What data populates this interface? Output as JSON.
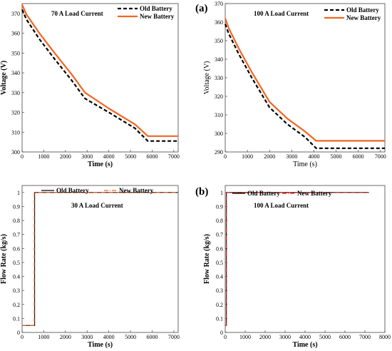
{
  "panel_letters": {
    "a": "(a)",
    "b": "(b)"
  },
  "chart_data": [
    {
      "id": "tl",
      "type": "line",
      "annotation": "70 A Load Current",
      "xlabel": "Time (s)",
      "ylabel": "Voltage (V)",
      "xlim": [
        0,
        7200
      ],
      "ylim": [
        300,
        375
      ],
      "xticks": [
        0,
        1000,
        2000,
        3000,
        4000,
        5000,
        6000,
        7000
      ],
      "yticks": [
        300,
        310,
        320,
        330,
        340,
        350,
        360,
        370
      ],
      "legend_position": "top-right",
      "series": [
        {
          "name": "Old Battery",
          "color": "#000000",
          "style": "dashed",
          "x": [
            0,
            200,
            800,
            1500,
            2300,
            2900,
            4000,
            5200,
            5800,
            7200
          ],
          "y": [
            372,
            367,
            357,
            347,
            336,
            327,
            320,
            312,
            305.5,
            305.5
          ]
        },
        {
          "name": "New Battery",
          "color": "#f26522",
          "style": "solid",
          "x": [
            0,
            200,
            800,
            1500,
            2300,
            2900,
            4000,
            5200,
            5800,
            7200
          ],
          "y": [
            374.5,
            369.5,
            360,
            350,
            339,
            330,
            322,
            314,
            308,
            308
          ]
        }
      ]
    },
    {
      "id": "tr",
      "type": "line",
      "annotation": "100 A Load Current",
      "xlabel": "Time (s)",
      "ylabel": "Voltage (V)",
      "xlim": [
        0,
        7200
      ],
      "ylim": [
        290,
        370
      ],
      "xticks": [
        0,
        1000,
        2000,
        3000,
        4000,
        5000,
        6000,
        7000
      ],
      "yticks": [
        290,
        300,
        310,
        320,
        330,
        340,
        350,
        360,
        370
      ],
      "legend_position": "top-right",
      "series": [
        {
          "name": "Old Battery",
          "color": "#000000",
          "style": "dashed",
          "x": [
            0,
            150,
            600,
            1200,
            2000,
            2800,
            3600,
            4100,
            7200
          ],
          "y": [
            359,
            354,
            343,
            330,
            314,
            305,
            298,
            292,
            292
          ]
        },
        {
          "name": "New Battery",
          "color": "#f26522",
          "style": "solid",
          "x": [
            0,
            150,
            600,
            1200,
            2000,
            2800,
            3600,
            4100,
            7200
          ],
          "y": [
            362,
            357,
            346,
            333,
            317,
            308,
            301,
            296,
            296
          ]
        }
      ]
    },
    {
      "id": "bl",
      "type": "line",
      "annotation": "30 A Load Current",
      "xlabel": "Time (s)",
      "ylabel": "Flow Rate (kg/s)",
      "xlim": [
        0,
        7200
      ],
      "ylim": [
        0,
        1.05
      ],
      "xticks": [
        0,
        1000,
        2000,
        3000,
        4000,
        5000,
        6000,
        7000
      ],
      "yticks": [
        0,
        0.1,
        0.2,
        0.3,
        0.4,
        0.5,
        0.6,
        0.7,
        0.8,
        0.9,
        1
      ],
      "legend_position": "top",
      "series": [
        {
          "name": "Old Battery",
          "color": "#000000",
          "style": "solid",
          "x": [
            0,
            580,
            580,
            7200
          ],
          "y": [
            0.05,
            0.05,
            1,
            1
          ]
        },
        {
          "name": "New Battery",
          "color": "#f26522",
          "style": "dashdot",
          "x": [
            0,
            560,
            560,
            7200
          ],
          "y": [
            0.05,
            0.05,
            1,
            1
          ]
        }
      ]
    },
    {
      "id": "br",
      "type": "line",
      "annotation": "100 A Load Current",
      "xlabel": "Time (s)",
      "ylabel": "Flow Rate (kg/s)",
      "xlim": [
        0,
        8000
      ],
      "ylim": [
        0,
        1.05
      ],
      "xticks": [
        0,
        1000,
        2000,
        3000,
        4000,
        5000,
        6000,
        7000,
        8000
      ],
      "yticks": [
        0,
        0.1,
        0.2,
        0.3,
        0.4,
        0.5,
        0.6,
        0.7,
        0.8,
        0.9,
        1
      ],
      "legend_position": "top",
      "series": [
        {
          "name": "Old Battery",
          "color": "#000000",
          "style": "solid",
          "x": [
            0,
            60,
            60,
            7200
          ],
          "y": [
            0.05,
            0.05,
            1,
            1
          ]
        },
        {
          "name": "New Battery",
          "color": "#e2231a",
          "style": "dashdot",
          "x": [
            0,
            50,
            50,
            7200
          ],
          "y": [
            0.05,
            0.05,
            1,
            1
          ]
        }
      ]
    }
  ]
}
